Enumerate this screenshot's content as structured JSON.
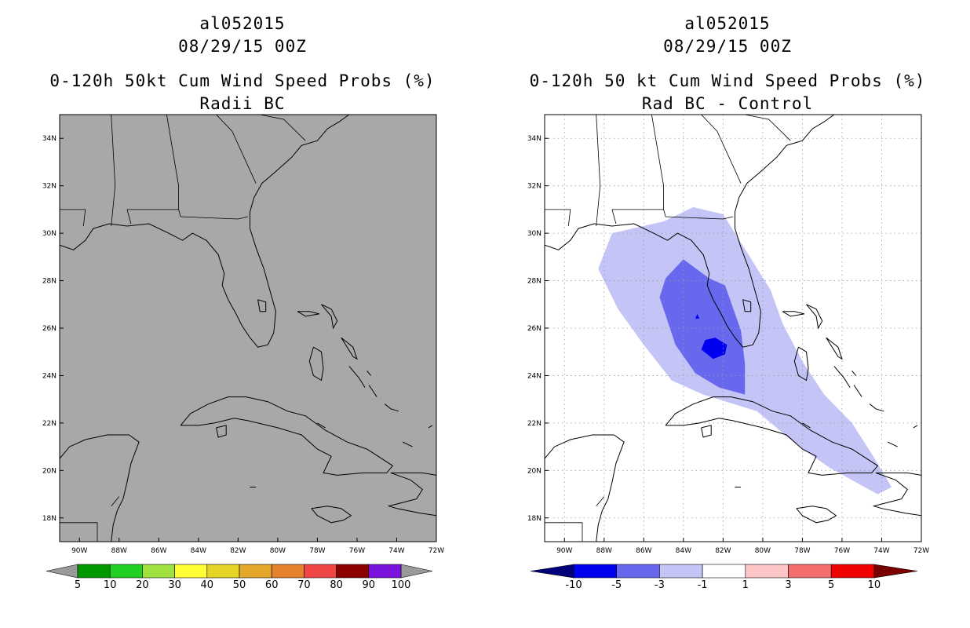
{
  "panels": {
    "left": {
      "storm_id": "al052015",
      "datetime": "08/29/15 00Z",
      "title": "0-120h 50kt Cum Wind Speed Probs (%)",
      "subtitle": "Radii BC",
      "background_color": "#a8a8a8",
      "colorbar_labels": [
        "5",
        "10",
        "20",
        "30",
        "40",
        "50",
        "60",
        "70",
        "80",
        "90",
        "100"
      ],
      "colorbar_colors": [
        "#009a00",
        "#21d121",
        "#9fe13f",
        "#ffff33",
        "#e5d425",
        "#e5a72b",
        "#e6822b",
        "#f04646",
        "#8c0000",
        "#7a14dc"
      ]
    },
    "right": {
      "storm_id": "al052015",
      "datetime": "08/29/15 00Z",
      "title": "0-120h 50 kt Cum Wind Speed Probs (%)",
      "subtitle": "Rad BC - Control",
      "background_color": "#ffffff",
      "colorbar_labels": [
        "-10",
        "-5",
        "-3",
        "-1",
        "1",
        "3",
        "5",
        "10"
      ],
      "colorbar_colors": [
        "#0000f0",
        "#6868ef",
        "#c4c4f6",
        "#ffffff",
        "#fcc6c6",
        "#f56e6e",
        "#f00000"
      ],
      "end_colors": {
        "low": "#00007a",
        "high": "#7a0000"
      }
    }
  },
  "chart_data": [
    {
      "type": "map",
      "title": "0-120h 50kt Cum Wind Speed Probs (%)",
      "subtitle": "Radii BC",
      "xlim": [
        -91,
        -72
      ],
      "ylim": [
        17,
        35
      ],
      "x_ticks": [
        -90,
        -88,
        -86,
        -84,
        -82,
        -80,
        -78,
        -76,
        -74,
        -72
      ],
      "x_tick_labels": [
        "90W",
        "88W",
        "86W",
        "84W",
        "82W",
        "80W",
        "78W",
        "76W",
        "74W",
        "72W"
      ],
      "y_ticks": [
        18,
        20,
        22,
        24,
        26,
        28,
        30,
        32,
        34
      ],
      "y_tick_labels": [
        "18N",
        "20N",
        "22N",
        "24N",
        "26N",
        "28N",
        "30N",
        "32N",
        "34N"
      ],
      "grid": false,
      "filled_levels": []
    },
    {
      "type": "map",
      "title": "0-120h 50 kt Cum Wind Speed Probs (%)",
      "subtitle": "Rad BC - Control",
      "xlim": [
        -91,
        -72
      ],
      "ylim": [
        17,
        35
      ],
      "x_ticks": [
        -90,
        -88,
        -86,
        -84,
        -82,
        -80,
        -78,
        -76,
        -74,
        -72
      ],
      "x_tick_labels": [
        "90W",
        "88W",
        "86W",
        "84W",
        "82W",
        "80W",
        "78W",
        "76W",
        "74W",
        "72W"
      ],
      "y_ticks": [
        18,
        20,
        22,
        24,
        26,
        28,
        30,
        32,
        34
      ],
      "y_tick_labels": [
        "18N",
        "20N",
        "22N",
        "24N",
        "26N",
        "28N",
        "30N",
        "32N",
        "34N"
      ],
      "grid": true,
      "filled_levels": [
        {
          "range": "-3 to -1",
          "color": "#c4c4f6",
          "polygon": [
            [
              -82.0,
              30.8
            ],
            [
              -80.8,
              29.2
            ],
            [
              -79.6,
              27.6
            ],
            [
              -79.0,
              26.2
            ],
            [
              -78.0,
              24.6
            ],
            [
              -76.9,
              23.2
            ],
            [
              -75.5,
              22.0
            ],
            [
              -74.5,
              20.7
            ],
            [
              -73.5,
              19.3
            ],
            [
              -74.2,
              19.0
            ],
            [
              -76.6,
              20.1
            ],
            [
              -78.3,
              21.1
            ],
            [
              -80.3,
              22.5
            ],
            [
              -83.0,
              23.2
            ],
            [
              -84.6,
              23.8
            ],
            [
              -86.0,
              25.3
            ],
            [
              -87.3,
              26.8
            ],
            [
              -88.3,
              28.5
            ],
            [
              -87.6,
              30.0
            ],
            [
              -85.0,
              30.5
            ],
            [
              -83.5,
              31.1
            ]
          ]
        },
        {
          "range": "-5 to -3",
          "color": "#6868ef",
          "polygon": [
            [
              -84.0,
              28.9
            ],
            [
              -82.7,
              28.1
            ],
            [
              -81.9,
              27.8
            ],
            [
              -81.1,
              25.9
            ],
            [
              -80.9,
              24.5
            ],
            [
              -80.9,
              23.2
            ],
            [
              -82.2,
              23.5
            ],
            [
              -83.4,
              24.1
            ],
            [
              -84.4,
              25.3
            ],
            [
              -85.2,
              27.3
            ],
            [
              -84.9,
              28.1
            ]
          ]
        },
        {
          "range": "-10 to -5",
          "color": "#0000f0",
          "polygon": [
            [
              -82.4,
              25.6
            ],
            [
              -81.8,
              25.3
            ],
            [
              -81.9,
              24.9
            ],
            [
              -82.5,
              24.7
            ],
            [
              -83.1,
              25.1
            ],
            [
              -82.9,
              25.5
            ]
          ]
        },
        {
          "range": "-10 to -5",
          "color": "#0000f0",
          "polygon": [
            [
              -83.3,
              26.6
            ],
            [
              -83.2,
              26.4
            ],
            [
              -83.4,
              26.4
            ]
          ]
        }
      ]
    }
  ]
}
